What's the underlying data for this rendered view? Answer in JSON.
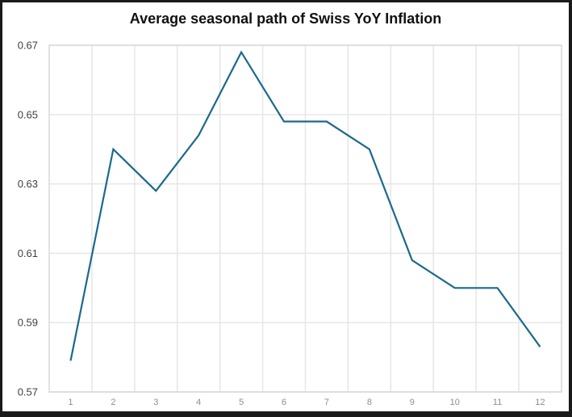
{
  "window": {
    "frame_color": "#1a1a1a",
    "background": "#ffffff"
  },
  "chart_data": {
    "type": "line",
    "title": "Average seasonal path of Swiss YoY Inflation",
    "x": [
      1,
      2,
      3,
      4,
      5,
      6,
      7,
      8,
      9,
      10,
      11,
      12
    ],
    "xticklabels": [
      "1",
      "2",
      "3",
      "4",
      "5",
      "6",
      "7",
      "8",
      "9",
      "10",
      "11",
      "12"
    ],
    "values": [
      0.579,
      0.64,
      0.628,
      0.644,
      0.668,
      0.648,
      0.648,
      0.64,
      0.608,
      0.6,
      0.6,
      0.583
    ],
    "ylim": [
      0.57,
      0.67
    ],
    "yticks": [
      0.57,
      0.59,
      0.61,
      0.63,
      0.65,
      0.67
    ],
    "yticklabels": [
      "0.57",
      "0.59",
      "0.61",
      "0.63",
      "0.65",
      "0.67"
    ],
    "xlabel": "",
    "ylabel": "",
    "grid": true,
    "legend": false,
    "colors": {
      "line": "#1b698c",
      "grid": "#e4e4e4",
      "plot_border": "#d6d6d6",
      "title": "#111111",
      "ytick": "#3f3f3f",
      "xtick": "#8e8e8e"
    }
  }
}
